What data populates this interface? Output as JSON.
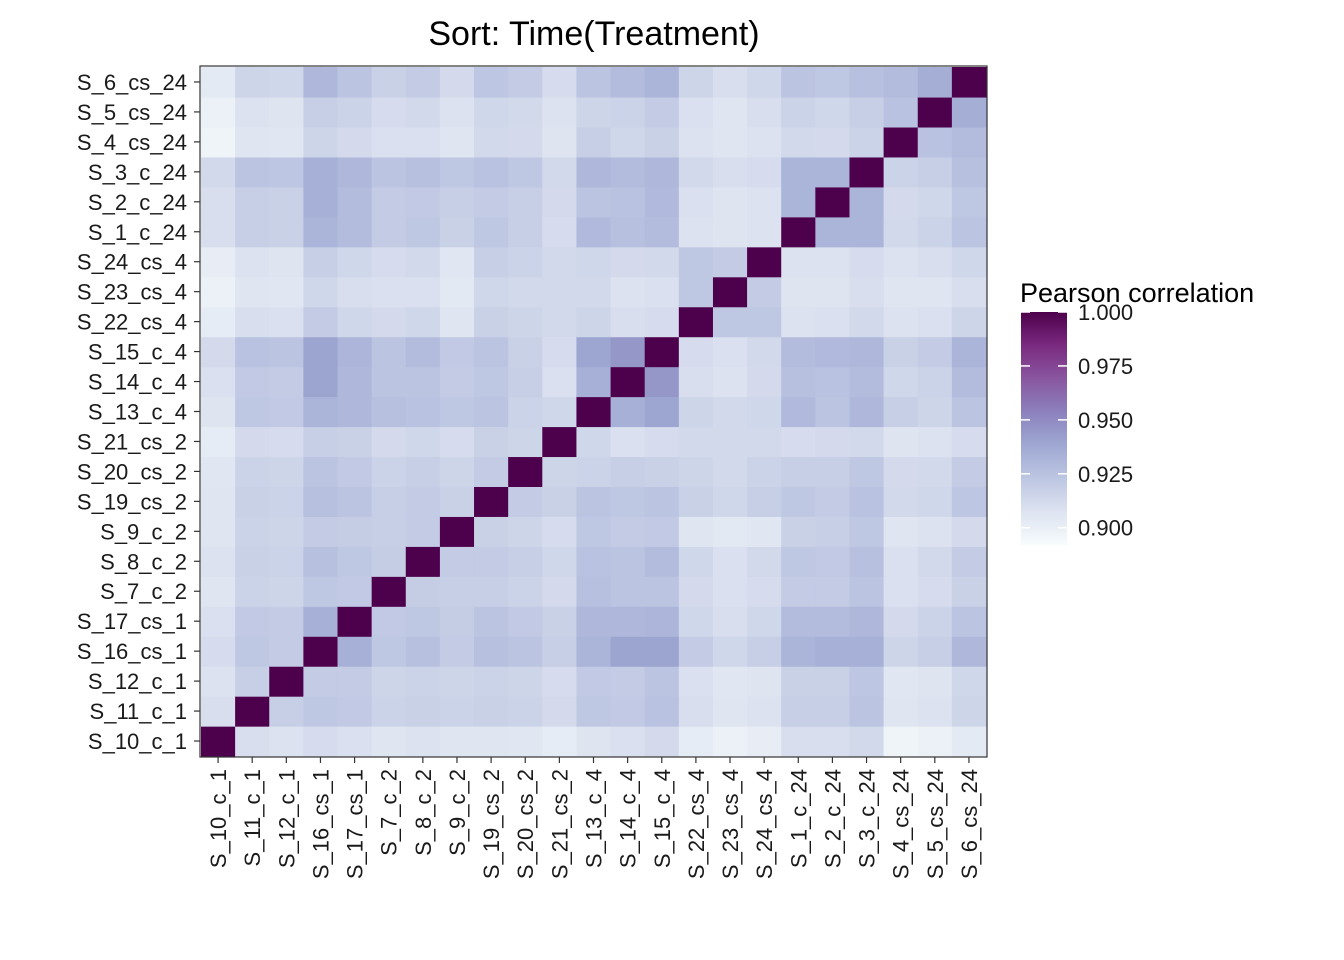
{
  "chart_data": {
    "type": "heatmap",
    "title": "Sort: Time(Treatment)",
    "xlabel": "",
    "ylabel": "",
    "samples": [
      "S_10_c_1",
      "S_11_c_1",
      "S_12_c_1",
      "S_16_cs_1",
      "S_17_cs_1",
      "S_7_c_2",
      "S_8_c_2",
      "S_9_c_2",
      "S_19_cs_2",
      "S_20_cs_2",
      "S_21_cs_2",
      "S_13_c_4",
      "S_14_c_4",
      "S_15_c_4",
      "S_22_cs_4",
      "S_23_cs_4",
      "S_24_cs_4",
      "S_1_c_24",
      "S_2_c_24",
      "S_3_c_24",
      "S_4_cs_24",
      "S_5_cs_24",
      "S_6_cs_24"
    ],
    "matrix": [
      [
        1.0,
        0.91,
        0.908,
        0.911,
        0.909,
        0.906,
        0.908,
        0.906,
        0.906,
        0.905,
        0.902,
        0.907,
        0.909,
        0.912,
        0.902,
        0.899,
        0.901,
        0.91,
        0.91,
        0.913,
        0.897,
        0.899,
        0.903
      ],
      [
        0.91,
        1.0,
        0.918,
        0.922,
        0.921,
        0.916,
        0.917,
        0.916,
        0.917,
        0.916,
        0.912,
        0.922,
        0.921,
        0.925,
        0.91,
        0.906,
        0.908,
        0.918,
        0.918,
        0.924,
        0.906,
        0.908,
        0.915
      ],
      [
        0.908,
        0.918,
        1.0,
        0.92,
        0.92,
        0.915,
        0.916,
        0.915,
        0.916,
        0.915,
        0.911,
        0.921,
        0.92,
        0.924,
        0.909,
        0.905,
        0.907,
        0.917,
        0.917,
        0.923,
        0.905,
        0.907,
        0.914
      ],
      [
        0.911,
        0.922,
        0.92,
        1.0,
        0.934,
        0.922,
        0.926,
        0.92,
        0.926,
        0.924,
        0.918,
        0.932,
        0.94,
        0.94,
        0.92,
        0.914,
        0.918,
        0.932,
        0.934,
        0.934,
        0.915,
        0.918,
        0.93
      ],
      [
        0.909,
        0.921,
        0.92,
        0.934,
        1.0,
        0.921,
        0.922,
        0.919,
        0.924,
        0.921,
        0.917,
        0.93,
        0.93,
        0.931,
        0.914,
        0.91,
        0.914,
        0.928,
        0.928,
        0.93,
        0.912,
        0.916,
        0.924
      ],
      [
        0.906,
        0.916,
        0.915,
        0.922,
        0.921,
        1.0,
        0.919,
        0.918,
        0.918,
        0.916,
        0.912,
        0.926,
        0.924,
        0.924,
        0.912,
        0.909,
        0.911,
        0.92,
        0.92,
        0.924,
        0.909,
        0.911,
        0.917
      ],
      [
        0.908,
        0.917,
        0.916,
        0.926,
        0.922,
        0.919,
        1.0,
        0.92,
        0.92,
        0.918,
        0.914,
        0.925,
        0.924,
        0.928,
        0.914,
        0.909,
        0.913,
        0.922,
        0.921,
        0.926,
        0.909,
        0.913,
        0.92
      ],
      [
        0.906,
        0.916,
        0.915,
        0.92,
        0.919,
        0.918,
        0.92,
        1.0,
        0.917,
        0.915,
        0.911,
        0.922,
        0.92,
        0.921,
        0.906,
        0.904,
        0.905,
        0.917,
        0.918,
        0.922,
        0.906,
        0.908,
        0.912
      ],
      [
        0.906,
        0.917,
        0.916,
        0.926,
        0.924,
        0.918,
        0.92,
        0.917,
        1.0,
        0.92,
        0.917,
        0.924,
        0.922,
        0.924,
        0.917,
        0.914,
        0.918,
        0.922,
        0.92,
        0.925,
        0.913,
        0.914,
        0.923
      ],
      [
        0.905,
        0.916,
        0.915,
        0.924,
        0.921,
        0.916,
        0.918,
        0.915,
        0.92,
        1.0,
        0.915,
        0.916,
        0.918,
        0.917,
        0.915,
        0.913,
        0.916,
        0.918,
        0.918,
        0.922,
        0.912,
        0.913,
        0.92
      ],
      [
        0.902,
        0.912,
        0.911,
        0.918,
        0.917,
        0.912,
        0.914,
        0.911,
        0.917,
        0.915,
        1.0,
        0.914,
        0.909,
        0.911,
        0.913,
        0.913,
        0.913,
        0.911,
        0.912,
        0.913,
        0.907,
        0.908,
        0.911
      ],
      [
        0.907,
        0.922,
        0.921,
        0.932,
        0.93,
        0.926,
        0.925,
        0.922,
        0.924,
        0.916,
        0.914,
        1.0,
        0.934,
        0.939,
        0.915,
        0.913,
        0.914,
        0.929,
        0.924,
        0.93,
        0.918,
        0.915,
        0.924
      ],
      [
        0.909,
        0.921,
        0.92,
        0.94,
        0.93,
        0.924,
        0.924,
        0.92,
        0.922,
        0.918,
        0.909,
        0.934,
        1.0,
        0.945,
        0.91,
        0.908,
        0.912,
        0.926,
        0.925,
        0.928,
        0.914,
        0.916,
        0.928
      ],
      [
        0.912,
        0.925,
        0.924,
        0.94,
        0.931,
        0.924,
        0.928,
        0.921,
        0.924,
        0.917,
        0.911,
        0.939,
        0.945,
        1.0,
        0.911,
        0.909,
        0.913,
        0.928,
        0.929,
        0.93,
        0.917,
        0.92,
        0.932
      ],
      [
        0.902,
        0.91,
        0.909,
        0.92,
        0.914,
        0.912,
        0.914,
        0.906,
        0.917,
        0.915,
        0.913,
        0.915,
        0.91,
        0.911,
        1.0,
        0.922,
        0.922,
        0.908,
        0.909,
        0.913,
        0.908,
        0.909,
        0.915
      ],
      [
        0.899,
        0.906,
        0.905,
        0.914,
        0.91,
        0.909,
        0.909,
        0.904,
        0.914,
        0.913,
        0.913,
        0.913,
        0.908,
        0.909,
        0.922,
        1.0,
        0.92,
        0.907,
        0.907,
        0.91,
        0.906,
        0.906,
        0.91
      ],
      [
        0.901,
        0.908,
        0.907,
        0.918,
        0.914,
        0.911,
        0.913,
        0.905,
        0.918,
        0.916,
        0.913,
        0.914,
        0.912,
        0.913,
        0.922,
        0.92,
        1.0,
        0.908,
        0.908,
        0.911,
        0.908,
        0.91,
        0.914
      ],
      [
        0.91,
        0.918,
        0.917,
        0.932,
        0.928,
        0.92,
        0.922,
        0.917,
        0.922,
        0.918,
        0.911,
        0.929,
        0.926,
        0.928,
        0.908,
        0.907,
        0.908,
        1.0,
        0.932,
        0.932,
        0.913,
        0.916,
        0.924
      ],
      [
        0.91,
        0.918,
        0.917,
        0.934,
        0.928,
        0.92,
        0.921,
        0.918,
        0.92,
        0.918,
        0.912,
        0.924,
        0.925,
        0.929,
        0.909,
        0.907,
        0.908,
        0.932,
        1.0,
        0.932,
        0.912,
        0.914,
        0.922
      ],
      [
        0.913,
        0.924,
        0.923,
        0.934,
        0.93,
        0.924,
        0.926,
        0.922,
        0.925,
        0.922,
        0.913,
        0.93,
        0.928,
        0.93,
        0.913,
        0.91,
        0.911,
        0.932,
        0.932,
        1.0,
        0.916,
        0.918,
        0.926
      ],
      [
        0.897,
        0.906,
        0.905,
        0.915,
        0.912,
        0.909,
        0.909,
        0.906,
        0.913,
        0.912,
        0.907,
        0.918,
        0.914,
        0.917,
        0.908,
        0.906,
        0.908,
        0.913,
        0.912,
        0.916,
        1.0,
        0.925,
        0.928
      ],
      [
        0.899,
        0.908,
        0.907,
        0.918,
        0.916,
        0.911,
        0.913,
        0.908,
        0.914,
        0.913,
        0.908,
        0.915,
        0.916,
        0.92,
        0.909,
        0.906,
        0.91,
        0.916,
        0.914,
        0.918,
        0.925,
        1.0,
        0.935
      ],
      [
        0.903,
        0.915,
        0.914,
        0.93,
        0.924,
        0.917,
        0.92,
        0.912,
        0.923,
        0.92,
        0.911,
        0.924,
        0.928,
        0.932,
        0.915,
        0.91,
        0.914,
        0.924,
        0.922,
        0.926,
        0.928,
        0.935,
        1.0
      ]
    ],
    "legend": {
      "title": "Pearson correlation",
      "placement": "right",
      "ticks": [
        1.0,
        0.975,
        0.95,
        0.925,
        0.9
      ],
      "tick_labels": [
        "1.000",
        "0.975",
        "0.950",
        "0.925",
        "0.900"
      ],
      "range": [
        0.892,
        1.0
      ]
    },
    "colorscale": [
      "#f7fcfd",
      "#dde3f0",
      "#bdc6e2",
      "#9ea8d2",
      "#8c81bd",
      "#89569f",
      "#7a2a80",
      "#4d004b"
    ],
    "grid": true
  }
}
